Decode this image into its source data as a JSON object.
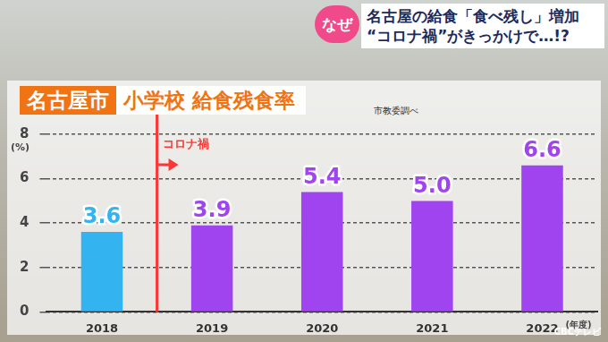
{
  "header": {
    "badge": "なぜ",
    "lines": [
      "名古屋の給食「食べ残し」増加",
      "“コロナ禍”がきっかけで…!?"
    ]
  },
  "logo": "CBCテレビ",
  "chart_data": {
    "type": "bar",
    "title": "名古屋市 小学校 給食残食率",
    "source": "市教委調べ",
    "y_label": "(%)",
    "x_label": "(年度)",
    "categories": [
      "2018",
      "2019",
      "2020",
      "2021",
      "2022"
    ],
    "values": [
      3.6,
      3.9,
      5.4,
      5.0,
      6.6
    ],
    "value_labels": [
      "3.6",
      "3.9",
      "5.4",
      "5.0",
      "6.6"
    ],
    "colors": [
      "#33b4f0",
      "#a044f0",
      "#a044f0",
      "#a044f0",
      "#a044f0"
    ],
    "ylim": [
      0,
      8
    ],
    "yticks": [
      0,
      2,
      4,
      6,
      8
    ],
    "grid": true,
    "data_labels": true,
    "annotations": [
      {
        "text": "コロナ禍",
        "between": [
          "2018",
          "2019"
        ]
      }
    ]
  }
}
